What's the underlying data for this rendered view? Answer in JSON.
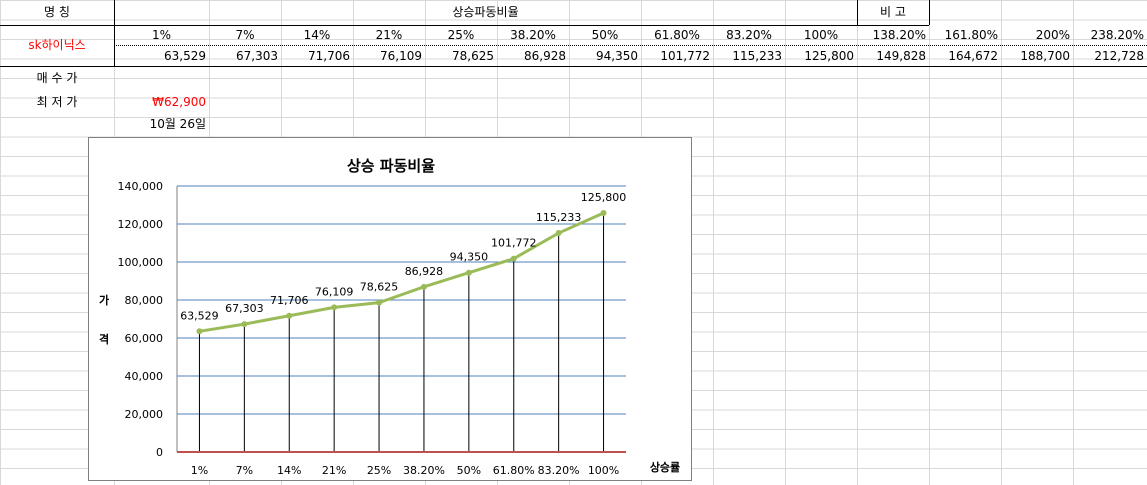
{
  "sheet": {
    "header": {
      "name_label": "명     칭",
      "ratio_label": "상승파동비율",
      "note_label": "비     고"
    },
    "row_name": "sk하이닉스",
    "percents": [
      "1%",
      "7%",
      "14%",
      "21%",
      "25%",
      "38.20%",
      "50%",
      "61.80%",
      "83.20%",
      "100%",
      "138.20%",
      "161.80%",
      "200%",
      "238.20%"
    ],
    "prices": [
      "63,529",
      "67,303",
      "71,706",
      "76,109",
      "78,625",
      "86,928",
      "94,350",
      "101,772",
      "115,233",
      "125,800",
      "149,828",
      "164,672",
      "188,700",
      "212,728"
    ],
    "buy_price_label": "매 수 가",
    "low_price_label": "최 저 가",
    "low_price_value": "₩62,900",
    "date_value": "10월 26일"
  },
  "chart_data": {
    "type": "line",
    "title": "상승 파동비율",
    "xlabel": "상승률",
    "ylabel": "가\n격",
    "categories": [
      "1%",
      "7%",
      "14%",
      "21%",
      "25%",
      "38.20%",
      "50%",
      "61.80%",
      "83.20%",
      "100%"
    ],
    "series": [
      {
        "values": [
          63529,
          67303,
          71706,
          76109,
          78625,
          86928,
          94350,
          101772,
          115233,
          125800
        ]
      }
    ],
    "data_labels": [
      "63,529",
      "67,303",
      "71,706",
      "76,109",
      "78,625",
      "86,928",
      "94,350",
      "101,772",
      "115,233",
      "125,800"
    ],
    "ylim": [
      0,
      140000
    ],
    "yticks": [
      "0",
      "20,000",
      "40,000",
      "60,000",
      "80,000",
      "100,000",
      "120,000",
      "140,000"
    ],
    "grid": true,
    "drop_lines": true,
    "colors": {
      "line": "#9bbb59",
      "drop": "#000000",
      "baseline": "#c0504d",
      "grid": "#4f81bd"
    }
  }
}
